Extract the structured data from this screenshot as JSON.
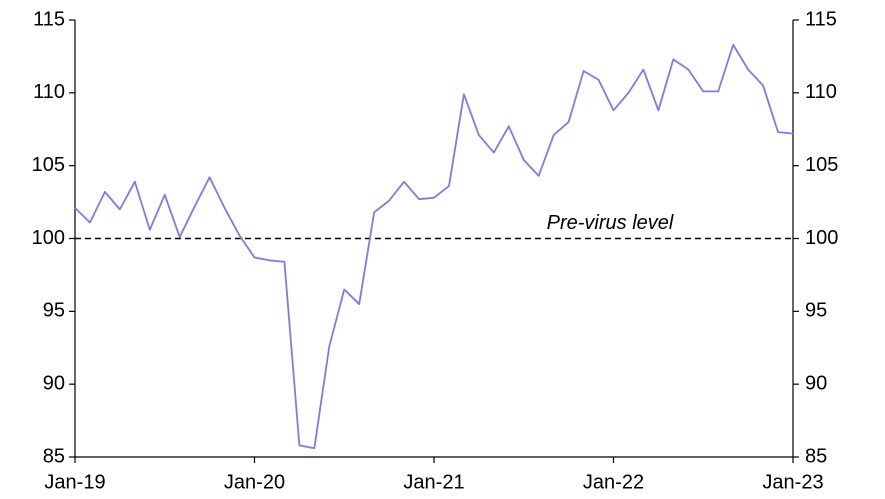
{
  "chart_data": {
    "type": "line",
    "categories": [
      "Jan-19",
      null,
      null,
      null,
      null,
      null,
      null,
      null,
      null,
      null,
      null,
      null,
      "Jan-20",
      null,
      null,
      null,
      null,
      null,
      null,
      null,
      null,
      null,
      null,
      null,
      "Jan-21",
      null,
      null,
      null,
      null,
      null,
      null,
      null,
      null,
      null,
      null,
      null,
      "Jan-22",
      null,
      null,
      null,
      null,
      null,
      null,
      null,
      null,
      null,
      null,
      null,
      "Jan-23"
    ],
    "series": [
      {
        "color": "#7b7bef",
        "values": [
          102.1,
          101.1,
          103.2,
          102.0,
          103.9,
          100.6,
          103.0,
          100.1,
          102.2,
          104.2,
          102.1,
          100.2,
          98.7,
          98.5,
          98.4,
          85.8,
          85.6,
          92.6,
          96.5,
          95.5,
          101.8,
          102.6,
          103.9,
          102.7,
          102.8,
          103.6,
          109.9,
          107.1,
          105.9,
          107.7,
          105.4,
          104.3,
          107.1,
          108.0,
          111.5,
          110.9,
          108.8,
          110.0,
          111.6,
          108.8,
          112.3,
          111.6,
          110.1,
          110.1,
          113.3,
          111.6,
          110.5,
          107.3,
          107.2
        ]
      }
    ],
    "reference_line": {
      "value": 100,
      "label": "Pre-virus level",
      "color": "#000000",
      "dashed": true
    },
    "ylim": [
      85,
      115
    ],
    "yticks": [
      85,
      90,
      95,
      100,
      105,
      110,
      115
    ],
    "y2lim": [
      85,
      115
    ],
    "y2ticks": [
      85,
      90,
      95,
      100,
      105,
      110,
      115
    ]
  }
}
